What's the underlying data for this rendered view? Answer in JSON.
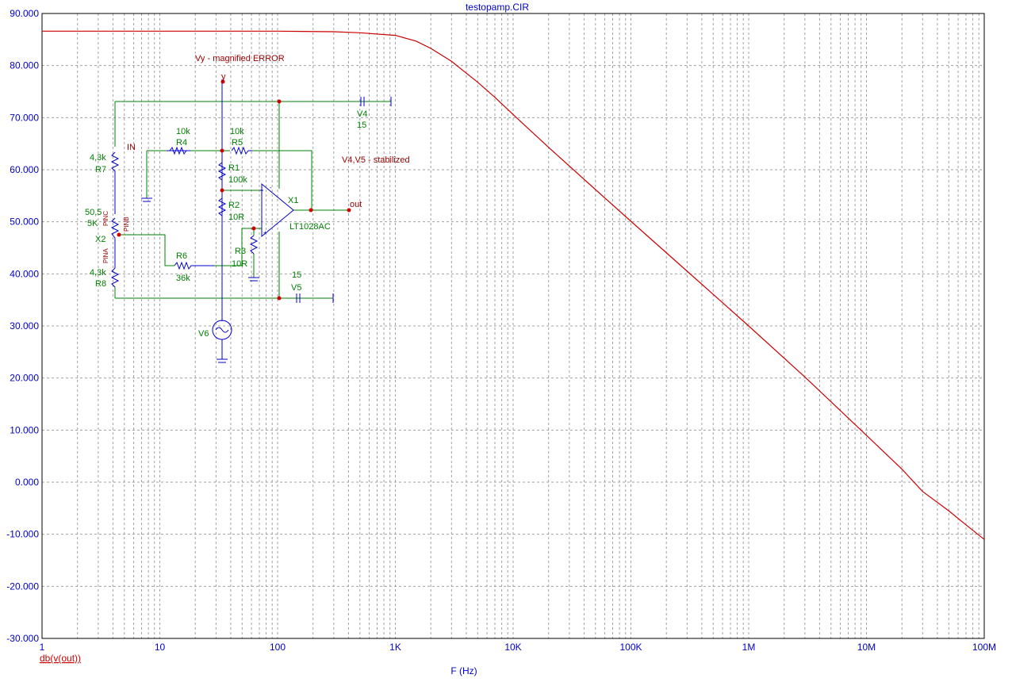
{
  "chart_data": {
    "type": "line",
    "title": "testopamp.CIR",
    "xlabel": "F (Hz)",
    "ylabel": "",
    "xscale": "log",
    "xlim": [
      1,
      100000000
    ],
    "ylim": [
      -30,
      90
    ],
    "grid": true,
    "x_tick_labels": [
      "1",
      "10",
      "100",
      "1K",
      "10K",
      "100K",
      "1M",
      "10M",
      "100M"
    ],
    "y_tick_labels": [
      "90.000",
      "80.000",
      "70.000",
      "60.000",
      "50.000",
      "40.000",
      "30.000",
      "20.000",
      "10.000",
      "0.000",
      "-10.000",
      "-20.000",
      "-30.000"
    ],
    "series": [
      {
        "name": "db(v(out))",
        "color": "#cc0000",
        "x": [
          1,
          10,
          100,
          300,
          500,
          1000,
          1500,
          2000,
          3000,
          5000,
          7000,
          10000,
          20000,
          50000,
          100000,
          300000,
          1000000,
          3000000,
          10000000,
          20000000,
          30000000,
          50000000,
          70000000,
          100000000
        ],
        "y": [
          86.6,
          86.6,
          86.6,
          86.5,
          86.3,
          85.8,
          84.7,
          83.3,
          80.8,
          76.8,
          73.9,
          70.6,
          64.3,
          56.2,
          50.1,
          40.5,
          30.0,
          20.2,
          9.0,
          2.5,
          -1.8,
          -5.5,
          -8.2,
          -11.0
        ]
      }
    ]
  },
  "schematic": {
    "annotations": {
      "vy_note": "Vy - magnified ERROR",
      "v4v5_note": "V4,V5 - stabilized",
      "node_y": "y",
      "node_out": "out",
      "node_in": "IN"
    },
    "labels": {
      "r4_value": "10k",
      "r4_name": "R4",
      "r5_value": "10k",
      "r5_name": "R5",
      "r1_name": "R1",
      "r1_value": "100k",
      "r2_name": "R2",
      "r2_value": "10R",
      "r3_name": "R3",
      "r3_value": "10R",
      "r6_name": "R6",
      "r6_value": "36k",
      "r7_value": "4,3k",
      "r7_name": "R7",
      "r8_value": "4,3k",
      "r8_name": "R8",
      "x2_value1": "50,5",
      "x2_value2": "5K",
      "x2_name": "X2",
      "x1_name": "X1",
      "x1_model": "LT1028AC",
      "v4_name": "V4",
      "v4_value": "15",
      "v5_value": "15",
      "v5_name": "V5",
      "v6_name": "V6",
      "pin_c": "PINC",
      "pin_b": "PINB",
      "pin_a": "PINA"
    }
  }
}
